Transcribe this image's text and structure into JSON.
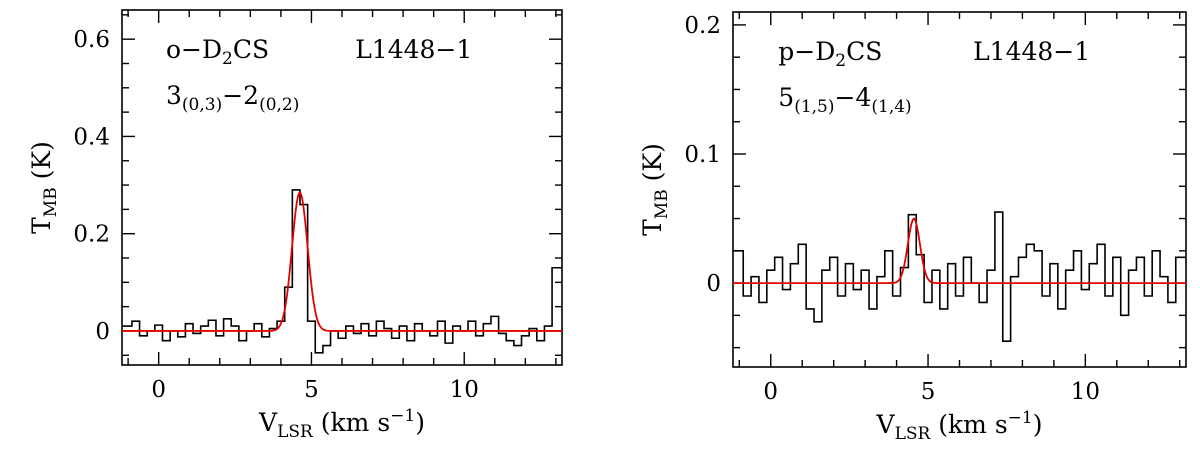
{
  "figure": {
    "background": "#ffffff",
    "axis_color": "#000000",
    "description_labels": {
      "source_name": "L1448−1"
    }
  },
  "chart_data": [
    {
      "id": "ortho-d2cs",
      "type": "line",
      "subtype": "spectrum-histogram-with-gaussian-fit",
      "annotations": {
        "molecule_plain": "o-D2CS",
        "molecule_parts": [
          {
            "t": "o−D"
          },
          {
            "t": "2",
            "sub": true
          },
          {
            "t": "CS"
          }
        ],
        "transition_plain": "3(0,3)-2(0,2)",
        "transition_parts": [
          {
            "t": "3"
          },
          {
            "t": "(0,3)",
            "sub": true
          },
          {
            "t": "−2"
          },
          {
            "t": "(0,2)",
            "sub": true
          }
        ],
        "source": "L1448−1"
      },
      "xlabel_plain": "V_LSR (km s^-1)",
      "xlabel_parts": [
        {
          "t": "V"
        },
        {
          "t": "LSR",
          "sub": true
        },
        {
          "t": " (km s"
        },
        {
          "t": "−1",
          "sup": true
        },
        {
          "t": ")"
        }
      ],
      "ylabel_plain": "T_MB (K)",
      "ylabel_parts": [
        {
          "t": "T"
        },
        {
          "t": "MB",
          "sub": true
        },
        {
          "t": " (K)"
        }
      ],
      "xlim": [
        -1.2,
        13.2
      ],
      "ylim": [
        -0.07,
        0.66
      ],
      "xticks": {
        "values": [
          0,
          5,
          10
        ],
        "labels": [
          "0",
          "5",
          "10"
        ],
        "minor_step": 1
      },
      "yticks": {
        "values": [
          0,
          0.2,
          0.4,
          0.6
        ],
        "labels": [
          "0",
          "0.2",
          "0.4",
          "0.6"
        ],
        "minor_step": 0.05
      },
      "line_color": "#000000",
      "fit_color": "#e60000",
      "x_start": -1.0,
      "x_step": 0.25,
      "y": [
        0.01,
        0.02,
        -0.01,
        0.0,
        0.012,
        -0.02,
        0.0,
        -0.012,
        0.015,
        -0.005,
        0.01,
        0.022,
        -0.01,
        0.025,
        0.01,
        -0.02,
        0.0,
        0.015,
        -0.012,
        0.005,
        0.02,
        0.09,
        0.29,
        0.26,
        0.02,
        -0.045,
        -0.03,
        0.0,
        -0.015,
        0.01,
        -0.005,
        0.015,
        -0.01,
        0.02,
        0.005,
        -0.015,
        0.01,
        -0.02,
        0.015,
        0.0,
        -0.01,
        0.02,
        -0.025,
        0.01,
        0.0,
        0.02,
        -0.01,
        0.015,
        0.03,
        -0.005,
        -0.02,
        -0.03,
        -0.01,
        0.005,
        -0.02,
        0.01,
        0.13
      ],
      "fit": {
        "shape": "gaussian",
        "center": 4.62,
        "amplitude": 0.285,
        "fwhm": 0.6,
        "baseline": 0.0
      }
    },
    {
      "id": "para-d2cs",
      "type": "line",
      "subtype": "spectrum-histogram-with-gaussian-fit",
      "annotations": {
        "molecule_plain": "p-D2CS",
        "molecule_parts": [
          {
            "t": "p−D"
          },
          {
            "t": "2",
            "sub": true
          },
          {
            "t": "CS"
          }
        ],
        "transition_plain": "5(1,5)-4(1,4)",
        "transition_parts": [
          {
            "t": "5"
          },
          {
            "t": "(1,5)",
            "sub": true
          },
          {
            "t": "−4"
          },
          {
            "t": "(1,4)",
            "sub": true
          }
        ],
        "source": "L1448−1"
      },
      "xlabel_plain": "V_LSR (km s^-1)",
      "xlabel_parts": [
        {
          "t": "V"
        },
        {
          "t": "LSR",
          "sub": true
        },
        {
          "t": " (km s"
        },
        {
          "t": "−1",
          "sup": true
        },
        {
          "t": ")"
        }
      ],
      "ylabel_plain": "T_MB (K)",
      "ylabel_parts": [
        {
          "t": "T"
        },
        {
          "t": "MB",
          "sub": true
        },
        {
          "t": " (K)"
        }
      ],
      "xlim": [
        -1.2,
        13.2
      ],
      "ylim": [
        -0.065,
        0.21
      ],
      "xticks": {
        "values": [
          0,
          5,
          10
        ],
        "labels": [
          "0",
          "5",
          "10"
        ],
        "minor_step": 1
      },
      "yticks": {
        "values": [
          0,
          0.1,
          0.2
        ],
        "labels": [
          "0",
          "0.1",
          "0.2"
        ],
        "minor_step": 0.025
      },
      "line_color": "#000000",
      "fit_color": "#e60000",
      "x_start": -1.0,
      "x_step": 0.25,
      "y": [
        0.025,
        -0.01,
        0.005,
        -0.015,
        0.01,
        0.02,
        -0.005,
        0.015,
        0.03,
        -0.02,
        -0.03,
        0.01,
        0.02,
        -0.01,
        0.015,
        -0.005,
        0.01,
        -0.02,
        0.005,
        0.025,
        -0.01,
        0.012,
        0.053,
        0.022,
        -0.015,
        0.01,
        -0.02,
        0.015,
        -0.01,
        0.02,
        0.0,
        -0.015,
        0.01,
        0.055,
        -0.045,
        0.005,
        0.02,
        0.03,
        0.025,
        -0.01,
        0.015,
        -0.02,
        0.01,
        0.025,
        -0.005,
        0.015,
        0.03,
        -0.01,
        0.02,
        -0.025,
        0.01,
        0.02,
        -0.01,
        0.025,
        0.005,
        -0.015,
        0.02
      ],
      "fit": {
        "shape": "gaussian",
        "center": 4.55,
        "amplitude": 0.05,
        "fwhm": 0.45,
        "baseline": 0.0
      }
    }
  ]
}
